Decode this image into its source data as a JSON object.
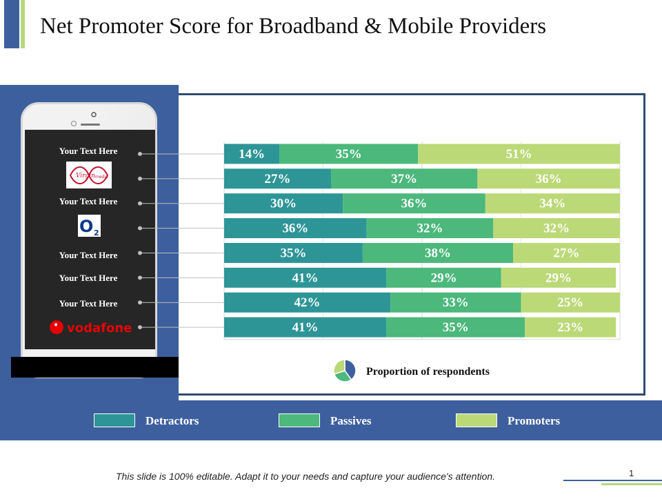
{
  "title": "Net Promoter Score for Broadband & Mobile Providers",
  "labels": [
    "Your Text Here",
    "Your Text Here",
    "Your Text Here",
    "Your Text Here",
    "Your Text Here"
  ],
  "logos": {
    "virgin_word": "Virgin",
    "virgin_sub": "media",
    "o2": "O",
    "o2_sub": "2",
    "vodafone": "vodafone"
  },
  "proportion_label": "Proportion of respondents",
  "legend": {
    "detractors": "Detractors",
    "passives": "Passives",
    "promoters": "Promoters"
  },
  "footer": "This slide is 100% editable. Adapt it to your needs and capture your audience's attention.",
  "page_number": "1",
  "colors": {
    "detractors": "#2e9597",
    "passives": "#4cb87b",
    "promoters": "#bcd978",
    "brand_blue": "#3d5f9d"
  },
  "chart_data": {
    "type": "bar",
    "orientation": "horizontal",
    "stacked": true,
    "categories": [
      "Your Text Here",
      "Virgin media",
      "Your Text Here",
      "O2",
      "Your Text Here",
      "Your Text Here",
      "Your Text Here",
      "vodafone"
    ],
    "series": [
      {
        "name": "Detractors",
        "values": [
          14,
          27,
          30,
          36,
          35,
          41,
          42,
          41
        ]
      },
      {
        "name": "Passives",
        "values": [
          35,
          37,
          36,
          32,
          38,
          29,
          33,
          35
        ]
      },
      {
        "name": "Promoters",
        "values": [
          51,
          36,
          34,
          32,
          27,
          29,
          25,
          23
        ]
      }
    ],
    "xlim": [
      0,
      100
    ],
    "legend": "bottom",
    "grid": true
  }
}
